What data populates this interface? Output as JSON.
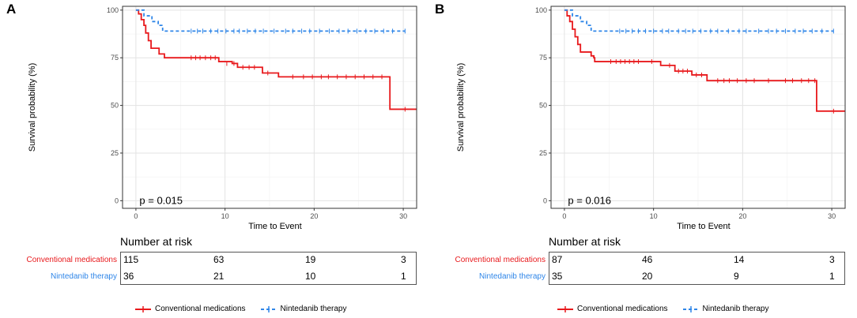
{
  "colors": {
    "conventional": "#e8191c",
    "nintedanib": "#2f86e8"
  },
  "chart_data": [
    {
      "type": "line",
      "panel_label": "A",
      "ylabel": "Survival probability (%)",
      "xlabel": "Time to Event",
      "xlim": [
        -1.5,
        31.5
      ],
      "ylim": [
        -4,
        102
      ],
      "x_ticks": [
        0,
        10,
        20,
        30
      ],
      "y_ticks": [
        0,
        25,
        50,
        75,
        100
      ],
      "pvalue_text": "p = 0.015",
      "series": [
        {
          "name": "Conventional medications",
          "style": "solid",
          "steps": [
            [
              0,
              100
            ],
            [
              0.3,
              98
            ],
            [
              0.6,
              95
            ],
            [
              0.9,
              92
            ],
            [
              1.1,
              88
            ],
            [
              1.4,
              84
            ],
            [
              1.7,
              80
            ],
            [
              2.4,
              80
            ],
            [
              2.6,
              77
            ],
            [
              3.2,
              75
            ],
            [
              9,
              75
            ],
            [
              9.3,
              73
            ],
            [
              10.8,
              72
            ],
            [
              11.4,
              70
            ],
            [
              13.8,
              70
            ],
            [
              14.2,
              67
            ],
            [
              15.2,
              67
            ],
            [
              16,
              65
            ],
            [
              28.5,
              65
            ],
            [
              28.5,
              48
            ],
            [
              31.5,
              48
            ]
          ],
          "censors": [
            [
              6.2,
              75
            ],
            [
              6.7,
              75
            ],
            [
              7.2,
              75
            ],
            [
              7.8,
              75
            ],
            [
              8.4,
              75
            ],
            [
              8.9,
              75
            ],
            [
              10.2,
              72
            ],
            [
              11,
              72
            ],
            [
              12,
              70
            ],
            [
              12.7,
              70
            ],
            [
              13.3,
              70
            ],
            [
              14.8,
              67
            ],
            [
              17.6,
              65
            ],
            [
              18.8,
              65
            ],
            [
              19.8,
              65
            ],
            [
              20.8,
              65
            ],
            [
              21.6,
              65
            ],
            [
              22.6,
              65
            ],
            [
              23.6,
              65
            ],
            [
              24.6,
              65
            ],
            [
              25.6,
              65
            ],
            [
              26.6,
              65
            ],
            [
              27.6,
              65
            ],
            [
              30.2,
              48
            ]
          ]
        },
        {
          "name": "Nintedanib therapy",
          "style": "dashed",
          "steps": [
            [
              0,
              100
            ],
            [
              0.9,
              100
            ],
            [
              0.9,
              97
            ],
            [
              1.8,
              97
            ],
            [
              1.8,
              94
            ],
            [
              2.5,
              92
            ],
            [
              3,
              89
            ],
            [
              30.2,
              89
            ]
          ],
          "censors": [
            [
              6.2,
              89
            ],
            [
              6.9,
              89
            ],
            [
              7.5,
              89
            ],
            [
              8.4,
              89
            ],
            [
              9.2,
              89
            ],
            [
              10.1,
              89
            ],
            [
              11,
              89
            ],
            [
              11.6,
              89
            ],
            [
              12.5,
              89
            ],
            [
              13.4,
              89
            ],
            [
              14.3,
              89
            ],
            [
              15.5,
              89
            ],
            [
              16.8,
              89
            ],
            [
              17.6,
              89
            ],
            [
              18.6,
              89
            ],
            [
              19.5,
              89
            ],
            [
              20.6,
              89
            ],
            [
              21.7,
              89
            ],
            [
              22.8,
              89
            ],
            [
              23.8,
              89
            ],
            [
              24.8,
              89
            ],
            [
              25.8,
              89
            ],
            [
              26.8,
              89
            ],
            [
              27.8,
              89
            ],
            [
              28.8,
              89
            ],
            [
              30.2,
              89
            ]
          ]
        }
      ],
      "risk_table": {
        "title": "Number at risk",
        "times": [
          0,
          10,
          20,
          30
        ],
        "rows": [
          {
            "label": "Conventional medications",
            "values": [
              "115",
              "63",
              "19",
              "3"
            ]
          },
          {
            "label": "Nintedanib therapy",
            "values": [
              "36",
              "21",
              "10",
              "1"
            ]
          }
        ]
      },
      "legend": [
        "Conventional medications",
        "Nintedanib therapy"
      ]
    },
    {
      "type": "line",
      "panel_label": "B",
      "ylabel": "Survival probability (%)",
      "xlabel": "Time to Event",
      "xlim": [
        -1.5,
        31.5
      ],
      "ylim": [
        -4,
        102
      ],
      "x_ticks": [
        0,
        10,
        20,
        30
      ],
      "y_ticks": [
        0,
        25,
        50,
        75,
        100
      ],
      "pvalue_text": "p = 0.016",
      "series": [
        {
          "name": "Conventional medications",
          "style": "solid",
          "steps": [
            [
              0,
              100
            ],
            [
              0.3,
              97
            ],
            [
              0.6,
              94
            ],
            [
              0.9,
              90
            ],
            [
              1.2,
              86
            ],
            [
              1.5,
              82
            ],
            [
              1.8,
              78
            ],
            [
              2.8,
              78
            ],
            [
              3,
              76
            ],
            [
              3.3,
              75
            ],
            [
              3.4,
              73
            ],
            [
              10.6,
              73
            ],
            [
              10.8,
              71
            ],
            [
              12.2,
              71
            ],
            [
              12.4,
              68
            ],
            [
              14.2,
              68
            ],
            [
              14.3,
              66
            ],
            [
              15.8,
              66
            ],
            [
              16,
              63
            ],
            [
              28.3,
              63
            ],
            [
              28.3,
              47
            ],
            [
              31.5,
              47
            ]
          ],
          "censors": [
            [
              5.2,
              73
            ],
            [
              5.8,
              73
            ],
            [
              6.3,
              73
            ],
            [
              6.8,
              73
            ],
            [
              7.3,
              73
            ],
            [
              7.8,
              73
            ],
            [
              8.3,
              73
            ],
            [
              9.8,
              73
            ],
            [
              11.8,
              71
            ],
            [
              12.8,
              68
            ],
            [
              13.3,
              68
            ],
            [
              13.8,
              68
            ],
            [
              14.8,
              66
            ],
            [
              15.4,
              66
            ],
            [
              17.2,
              63
            ],
            [
              17.9,
              63
            ],
            [
              18.5,
              63
            ],
            [
              19.4,
              63
            ],
            [
              20.4,
              63
            ],
            [
              21.3,
              63
            ],
            [
              22.9,
              63
            ],
            [
              24.8,
              63
            ],
            [
              25.6,
              63
            ],
            [
              26.6,
              63
            ],
            [
              27.4,
              63
            ],
            [
              28.1,
              63
            ],
            [
              30.2,
              47
            ]
          ]
        },
        {
          "name": "Nintedanib therapy",
          "style": "dashed",
          "steps": [
            [
              0,
              100
            ],
            [
              0.9,
              100
            ],
            [
              0.9,
              97
            ],
            [
              1.8,
              97
            ],
            [
              1.8,
              94
            ],
            [
              2.5,
              92
            ],
            [
              3,
              89
            ],
            [
              30.2,
              89
            ]
          ],
          "censors": [
            [
              6.2,
              89
            ],
            [
              6.9,
              89
            ],
            [
              7.6,
              89
            ],
            [
              8.3,
              89
            ],
            [
              9.1,
              89
            ],
            [
              10,
              89
            ],
            [
              11,
              89
            ],
            [
              11.7,
              89
            ],
            [
              12.8,
              89
            ],
            [
              13.6,
              89
            ],
            [
              14.4,
              89
            ],
            [
              15.3,
              89
            ],
            [
              16.4,
              89
            ],
            [
              17.2,
              89
            ],
            [
              18.4,
              89
            ],
            [
              19.6,
              89
            ],
            [
              20.4,
              89
            ],
            [
              21.8,
              89
            ],
            [
              22.9,
              89
            ],
            [
              23.8,
              89
            ],
            [
              24.8,
              89
            ],
            [
              25.9,
              89
            ],
            [
              26.8,
              89
            ],
            [
              27.8,
              89
            ],
            [
              28.9,
              89
            ],
            [
              30.2,
              89
            ]
          ]
        }
      ],
      "risk_table": {
        "title": "Number at risk",
        "times": [
          0,
          10,
          20,
          30
        ],
        "rows": [
          {
            "label": "Conventional medications",
            "values": [
              "87",
              "46",
              "14",
              "3"
            ]
          },
          {
            "label": "Nintedanib therapy",
            "values": [
              "35",
              "20",
              "9",
              "1"
            ]
          }
        ]
      },
      "legend": [
        "Conventional medications",
        "Nintedanib therapy"
      ]
    }
  ]
}
